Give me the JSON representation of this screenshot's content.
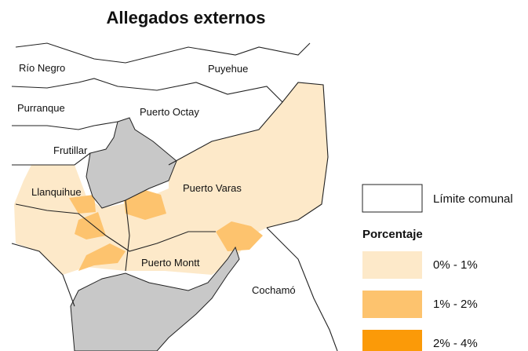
{
  "title": "Allegados externos",
  "places": [
    {
      "label": "Río Negro"
    },
    {
      "label": "Puyehue"
    },
    {
      "label": "Purranque"
    },
    {
      "label": "Puerto Octay"
    },
    {
      "label": "Frutillar"
    },
    {
      "label": "Llanquihue"
    },
    {
      "label": "Puerto Varas"
    },
    {
      "label": "Puerto Montt"
    },
    {
      "label": "Cochamó"
    }
  ],
  "legend": {
    "boundary": "Límite comunal",
    "title": "Porcentaje",
    "items": [
      {
        "label": "0% - 1%",
        "color": "#fde9c9"
      },
      {
        "label": "1% - 2%",
        "color": "#fdc36e"
      },
      {
        "label": "2% - 4%",
        "color": "#fb9a08"
      }
    ]
  }
}
